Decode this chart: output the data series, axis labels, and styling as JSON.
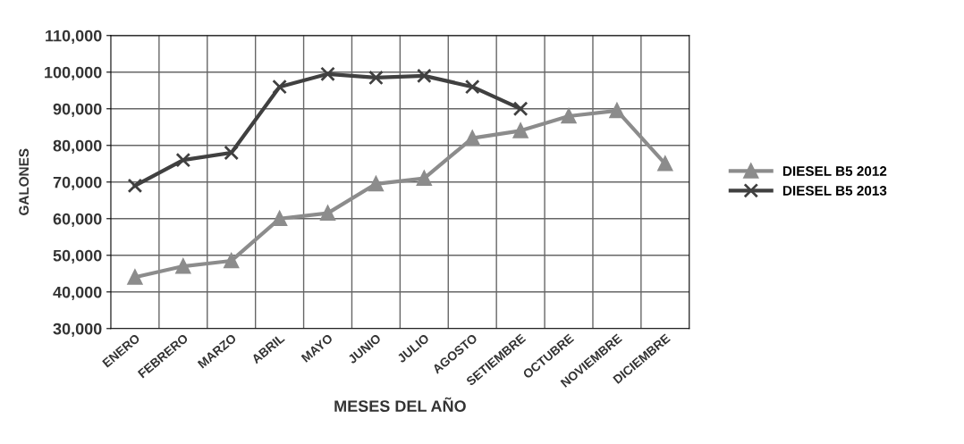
{
  "chart_data": {
    "type": "line",
    "xlabel": "MESES DEL AÑO",
    "ylabel": "GALONES",
    "categories": [
      "ENERO",
      "FEBRERO",
      "MARZO",
      "ABRIL",
      "MAYO",
      "JUNIO",
      "JULIO",
      "AGOSTO",
      "SETIEMBRE",
      "OCTUBRE",
      "NOVIEMBRE",
      "DICIEMBRE"
    ],
    "series": [
      {
        "name": "DIESEL B5 2012",
        "color": "#8c8c8c",
        "marker": "triangle",
        "values": [
          44000,
          47000,
          48500,
          60000,
          61500,
          69500,
          71000,
          82000,
          84000,
          88000,
          89500,
          75000
        ]
      },
      {
        "name": "DIESEL B5 2013",
        "color": "#404040",
        "marker": "cross",
        "values": [
          69000,
          76000,
          78000,
          96000,
          99500,
          98500,
          99000,
          96000,
          90000,
          null,
          null,
          null
        ]
      }
    ],
    "ylim": [
      30000,
      110000
    ],
    "yticks": [
      {
        "value": 30000,
        "label": "30,000"
      },
      {
        "value": 40000,
        "label": "40,000"
      },
      {
        "value": 50000,
        "label": "50,000"
      },
      {
        "value": 60000,
        "label": "60,000"
      },
      {
        "value": 70000,
        "label": "70,000"
      },
      {
        "value": 80000,
        "label": "80,000"
      },
      {
        "value": 90000,
        "label": "90,000"
      },
      {
        "value": 100000,
        "label": "100,000"
      },
      {
        "value": 110000,
        "label": "110,000"
      }
    ],
    "grid": true,
    "legend": "right",
    "line_style": "solid"
  }
}
